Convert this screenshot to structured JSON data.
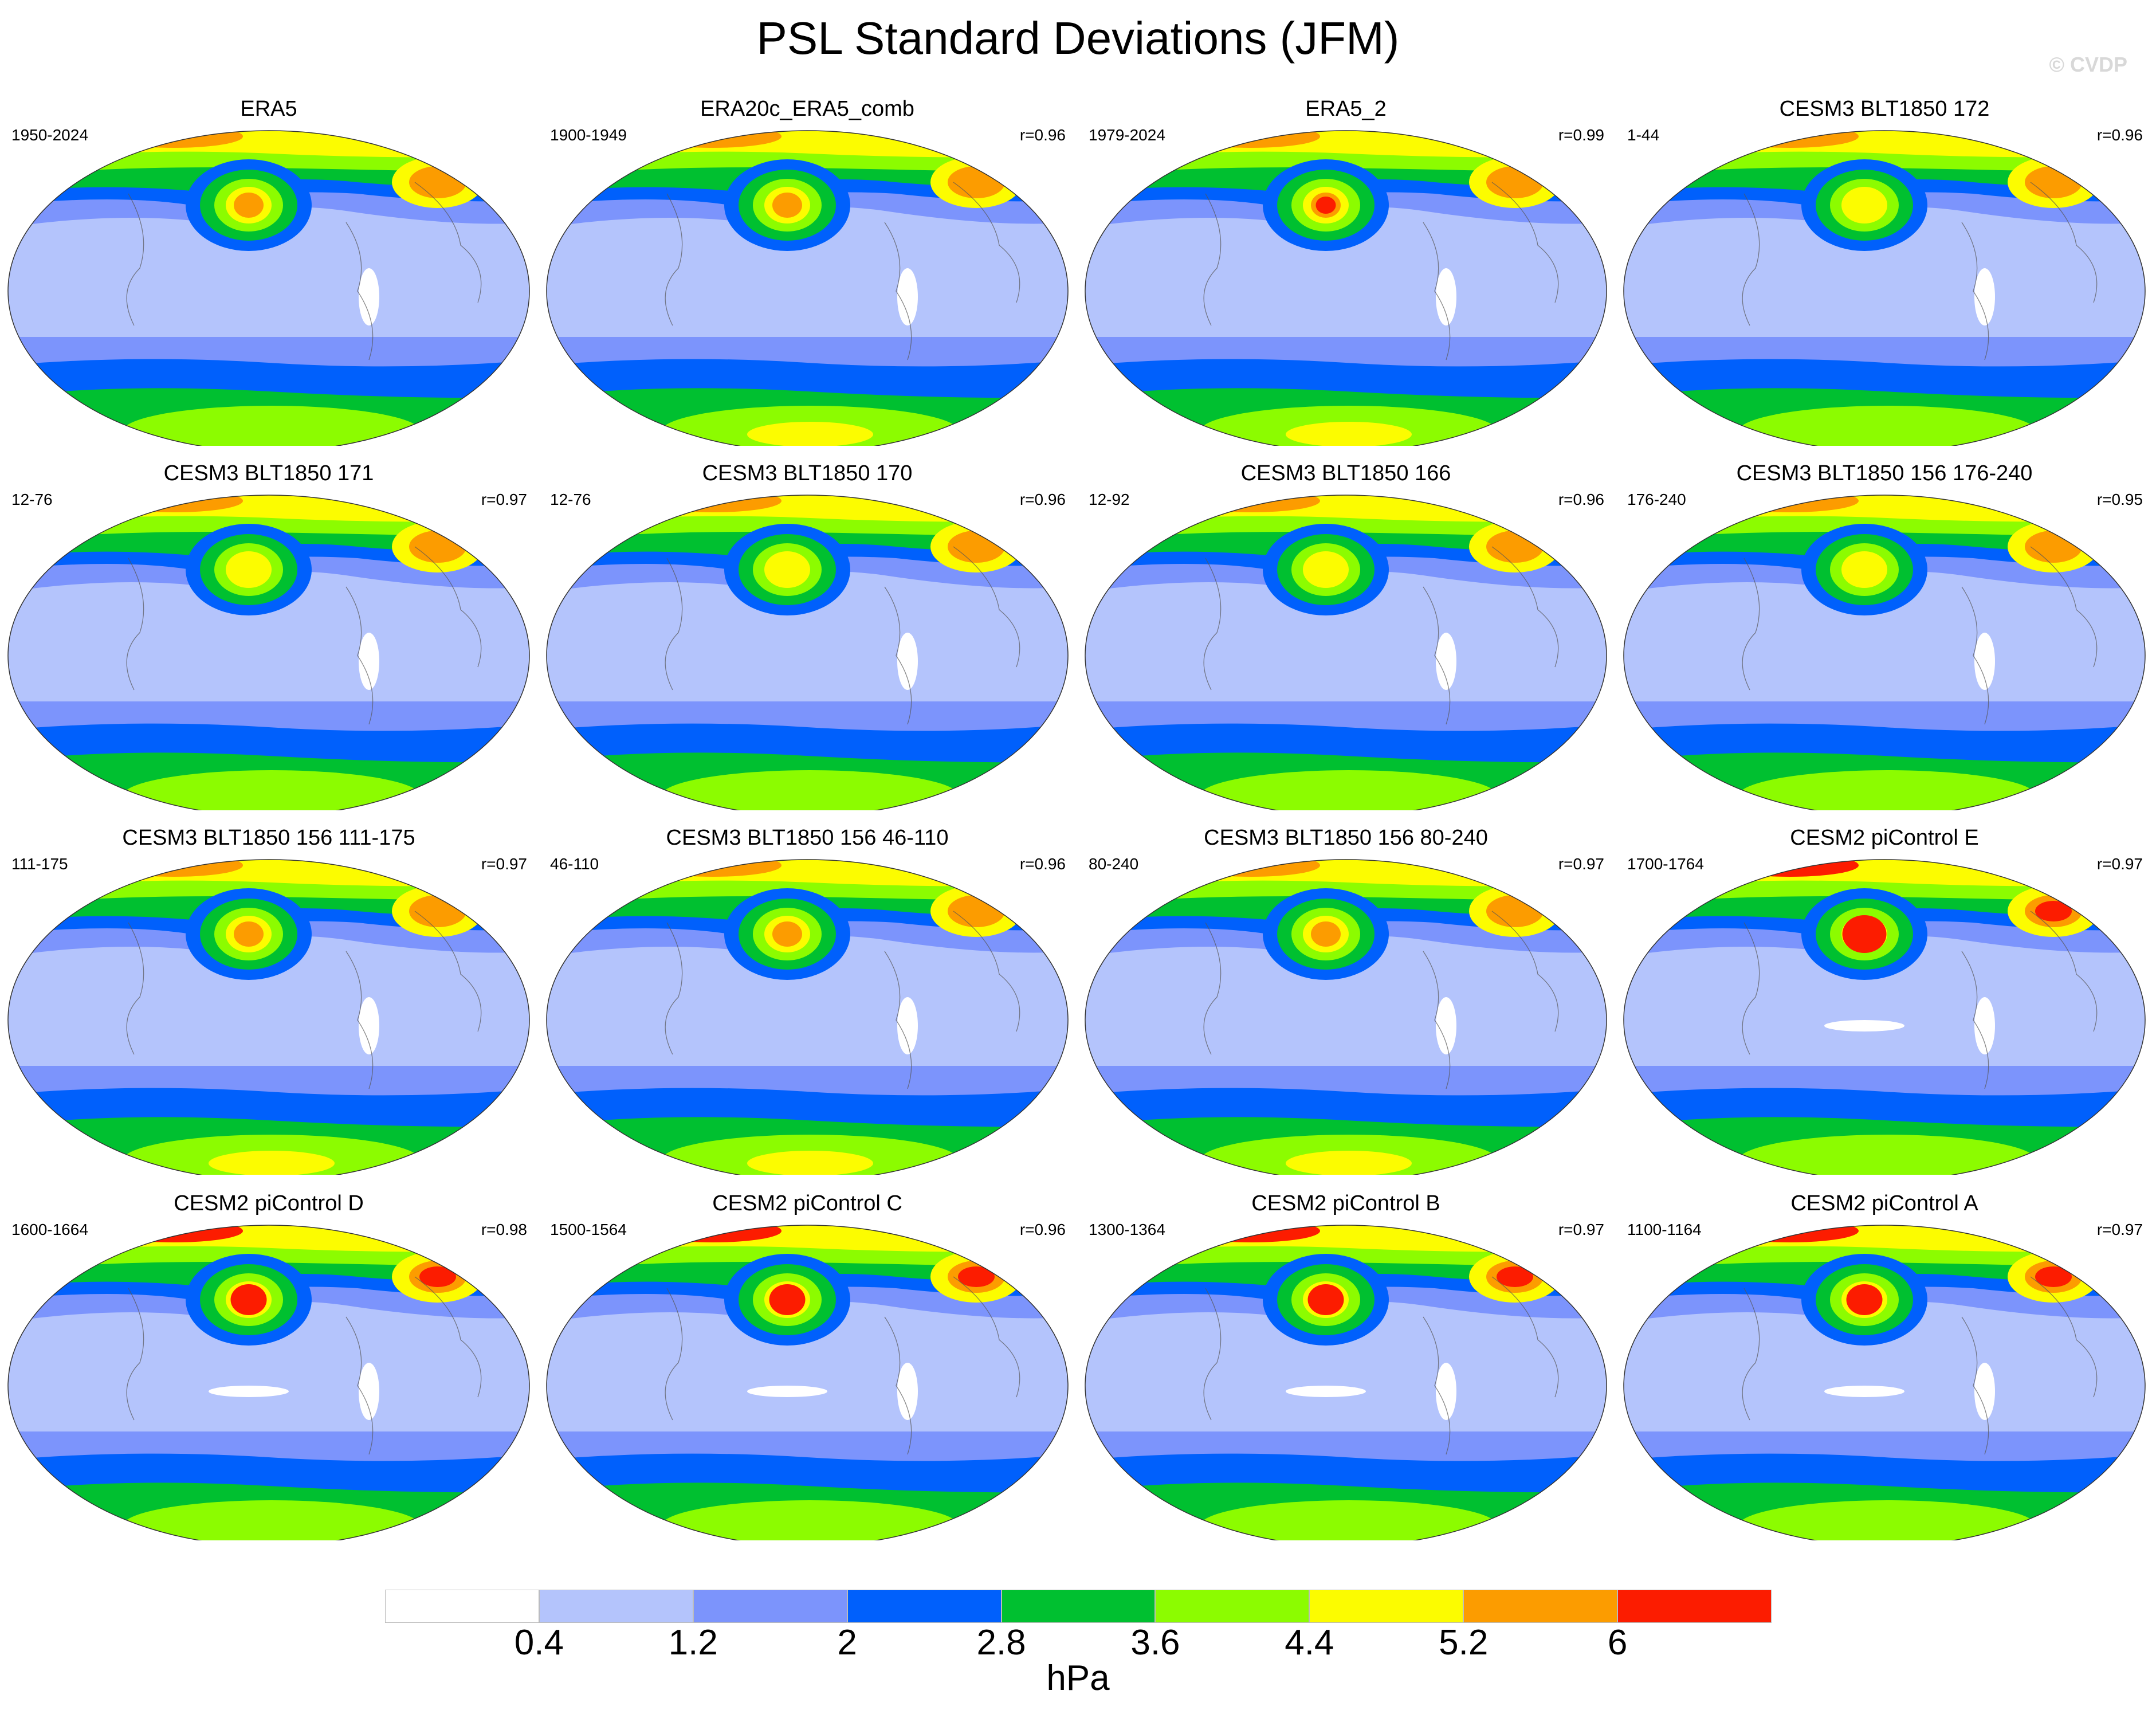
{
  "title": "PSL Standard Deviations (JFM)",
  "watermark": "© CVDP",
  "panels": [
    {
      "name": "ERA5",
      "years": "1950-2024",
      "r": "",
      "intensity": 0.55
    },
    {
      "name": "ERA20c_ERA5_comb",
      "years": "1900-1949",
      "r": "r=0.96",
      "intensity": 0.6
    },
    {
      "name": "ERA5_2",
      "years": "1979-2024",
      "r": "r=0.99",
      "intensity": 0.65
    },
    {
      "name": "CESM3 BLT1850 172",
      "years": "1-44",
      "r": "r=0.96",
      "intensity": 0.45
    },
    {
      "name": "CESM3 BLT1850 171",
      "years": "12-76",
      "r": "r=0.97",
      "intensity": 0.5
    },
    {
      "name": "CESM3 BLT1850 170",
      "years": "12-76",
      "r": "r=0.96",
      "intensity": 0.5
    },
    {
      "name": "CESM3 BLT1850 166",
      "years": "12-92",
      "r": "r=0.96",
      "intensity": 0.48
    },
    {
      "name": "CESM3 BLT1850 156 176-240",
      "years": "176-240",
      "r": "r=0.95",
      "intensity": 0.5
    },
    {
      "name": "CESM3 BLT1850 156 111-175",
      "years": "111-175",
      "r": "r=0.97",
      "intensity": 0.6
    },
    {
      "name": "CESM3 BLT1850 156 46-110",
      "years": "46-110",
      "r": "r=0.96",
      "intensity": 0.6
    },
    {
      "name": "CESM3 BLT1850 156 80-240",
      "years": "80-240",
      "r": "r=0.97",
      "intensity": 0.6
    },
    {
      "name": "CESM2 piControl E",
      "years": "1700-1764",
      "r": "r=0.97",
      "intensity": 0.95
    },
    {
      "name": "CESM2 piControl D",
      "years": "1600-1664",
      "r": "r=0.98",
      "intensity": 0.85
    },
    {
      "name": "CESM2 piControl C",
      "years": "1500-1564",
      "r": "r=0.96",
      "intensity": 0.85
    },
    {
      "name": "CESM2 piControl B",
      "years": "1300-1364",
      "r": "r=0.97",
      "intensity": 0.85
    },
    {
      "name": "CESM2 piControl A",
      "years": "1100-1164",
      "r": "r=0.97",
      "intensity": 0.85
    }
  ],
  "colorbar": {
    "colors": [
      "#ffffff",
      "#b4c4fc",
      "#7c94fc",
      "#0060fc",
      "#00c030",
      "#8cfc00",
      "#fcfc00",
      "#fc9c00",
      "#fc1c00"
    ],
    "labels": [
      "0.4",
      "1.2",
      "2",
      "2.8",
      "3.6",
      "4.4",
      "5.2",
      "6"
    ],
    "units": "hPa"
  }
}
